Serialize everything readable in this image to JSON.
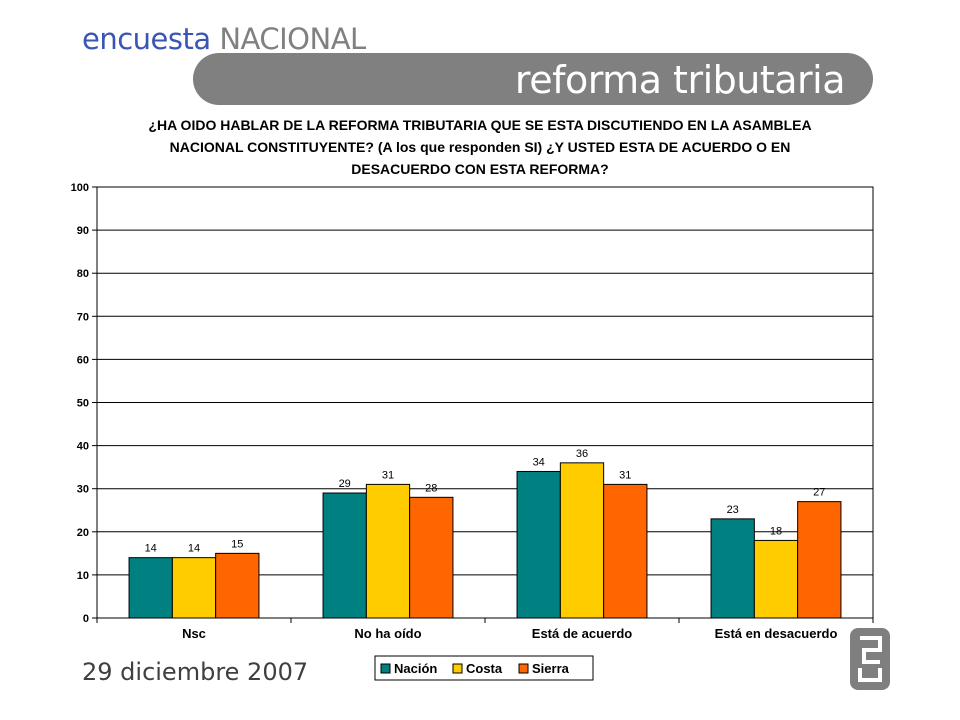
{
  "header": {
    "brand_part1": "encuesta",
    "brand_part2": "NACIONAL",
    "title": "reforma tributaria"
  },
  "question": "¿HA OIDO HABLAR DE LA REFORMA TRIBUTARIA QUE SE ESTA DISCUTIENDO EN LA ASAMBLEA\nNACIONAL CONSTITUYENTE? (A los que responden SI) ¿Y USTED ESTA DE ACUERDO O EN\nDESACUERDO CON ESTA REFORMA?",
  "footer": {
    "date": "29 diciembre 2007"
  },
  "logo": {
    "icon": "company-logo-icon",
    "color": "#7f7f7f"
  },
  "chart_data": {
    "type": "bar",
    "title": "",
    "xlabel": "",
    "ylabel": "",
    "ylim": [
      0,
      100
    ],
    "yticks": [
      0,
      10,
      20,
      30,
      40,
      50,
      60,
      70,
      80,
      90,
      100
    ],
    "grid": true,
    "legend_position": "bottom",
    "categories": [
      "Nsc",
      "No ha oído",
      "Está de acuerdo",
      "Está en desacuerdo"
    ],
    "series": [
      {
        "name": "Nación",
        "color": "#008080",
        "values": [
          14,
          29,
          34,
          23
        ]
      },
      {
        "name": "Costa",
        "color": "#ffcc00",
        "values": [
          14,
          31,
          36,
          18
        ]
      },
      {
        "name": "Sierra",
        "color": "#ff6600",
        "values": [
          15,
          28,
          31,
          27
        ]
      }
    ]
  }
}
